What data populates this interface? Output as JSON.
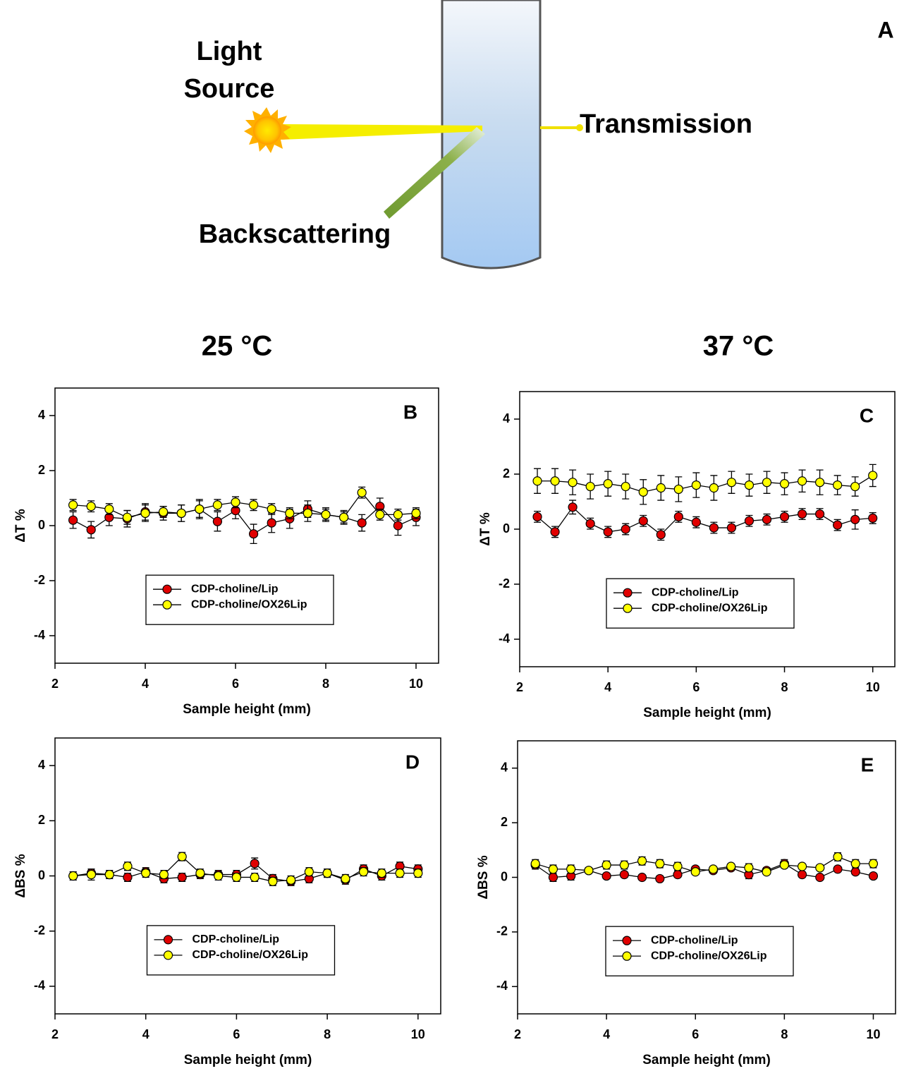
{
  "diagram": {
    "label": "A",
    "light_source_lines": [
      "Light",
      "Source"
    ],
    "transmission": "Transmission",
    "backscattering": "Backscattering"
  },
  "column_titles": [
    "25 °C",
    "37 °C"
  ],
  "chart_data": [
    {
      "type": "line",
      "label": "B",
      "xlabel": "Sample height (mm)",
      "ylabel": "ΔT %",
      "x": [
        2.4,
        2.8,
        3.2,
        3.6,
        4.0,
        4.4,
        4.8,
        5.2,
        5.6,
        6.0,
        6.4,
        6.8,
        7.2,
        7.6,
        8.0,
        8.4,
        8.8,
        9.2,
        9.6,
        10.0
      ],
      "xlim": [
        2,
        10.5
      ],
      "xticks": [
        2,
        4,
        6,
        8,
        10
      ],
      "ylim": [
        -5,
        5
      ],
      "yticks": [
        -4,
        -2,
        0,
        2,
        4
      ],
      "legend": "lower center",
      "series": [
        {
          "name": "CDP-choline/Lip",
          "color": "#e00000",
          "values": [
            0.2,
            -0.15,
            0.3,
            0.25,
            0.5,
            0.45,
            0.45,
            0.6,
            0.15,
            0.55,
            -0.3,
            0.1,
            0.25,
            0.6,
            0.4,
            0.3,
            0.1,
            0.7,
            0.0,
            0.3
          ],
          "errors": [
            0.3,
            0.3,
            0.3,
            0.3,
            0.3,
            0.25,
            0.3,
            0.3,
            0.35,
            0.3,
            0.35,
            0.35,
            0.35,
            0.3,
            0.25,
            0.25,
            0.3,
            0.3,
            0.35,
            0.3
          ]
        },
        {
          "name": "CDP-choline/OX26Lip",
          "color": "#ffff00",
          "values": [
            0.75,
            0.7,
            0.6,
            0.3,
            0.45,
            0.5,
            0.45,
            0.6,
            0.75,
            0.85,
            0.75,
            0.6,
            0.45,
            0.45,
            0.4,
            0.3,
            1.2,
            0.4,
            0.4,
            0.45
          ],
          "errors": [
            0.2,
            0.2,
            0.2,
            0.25,
            0.3,
            0.2,
            0.3,
            0.35,
            0.2,
            0.2,
            0.2,
            0.2,
            0.2,
            0.3,
            0.2,
            0.2,
            0.2,
            0.2,
            0.2,
            0.2
          ]
        }
      ]
    },
    {
      "type": "line",
      "label": "C",
      "xlabel": "Sample height (mm)",
      "ylabel": "ΔT %",
      "x": [
        2.4,
        2.8,
        3.2,
        3.6,
        4.0,
        4.4,
        4.8,
        5.2,
        5.6,
        6.0,
        6.4,
        6.8,
        7.2,
        7.6,
        8.0,
        8.4,
        8.8,
        9.2,
        9.6,
        10.0
      ],
      "xlim": [
        2,
        10.5
      ],
      "xticks": [
        2,
        4,
        6,
        8,
        10
      ],
      "ylim": [
        -5,
        5
      ],
      "yticks": [
        -4,
        -2,
        0,
        2,
        4
      ],
      "legend": "lower center",
      "series": [
        {
          "name": "CDP-choline/Lip",
          "color": "#e00000",
          "values": [
            0.45,
            -0.1,
            0.8,
            0.2,
            -0.1,
            0.0,
            0.3,
            -0.2,
            0.45,
            0.25,
            0.05,
            0.05,
            0.3,
            0.35,
            0.45,
            0.55,
            0.55,
            0.15,
            0.35,
            0.4
          ],
          "errors": [
            0.2,
            0.2,
            0.25,
            0.2,
            0.2,
            0.2,
            0.2,
            0.2,
            0.2,
            0.2,
            0.2,
            0.2,
            0.2,
            0.2,
            0.2,
            0.2,
            0.2,
            0.2,
            0.35,
            0.2
          ]
        },
        {
          "name": "CDP-choline/OX26Lip",
          "color": "#ffff00",
          "values": [
            1.75,
            1.75,
            1.7,
            1.55,
            1.65,
            1.55,
            1.35,
            1.5,
            1.45,
            1.6,
            1.5,
            1.7,
            1.6,
            1.7,
            1.65,
            1.75,
            1.7,
            1.6,
            1.55,
            1.95
          ],
          "errors": [
            0.45,
            0.45,
            0.45,
            0.45,
            0.45,
            0.45,
            0.45,
            0.45,
            0.45,
            0.45,
            0.45,
            0.4,
            0.4,
            0.4,
            0.4,
            0.4,
            0.45,
            0.35,
            0.35,
            0.4
          ]
        }
      ]
    },
    {
      "type": "line",
      "label": "D",
      "xlabel": "Sample height (mm)",
      "ylabel": "ΔBS %",
      "x": [
        2.4,
        2.8,
        3.2,
        3.6,
        4.0,
        4.4,
        4.8,
        5.2,
        5.6,
        6.0,
        6.4,
        6.8,
        7.2,
        7.6,
        8.0,
        8.4,
        8.8,
        9.2,
        9.6,
        10.0
      ],
      "xlim": [
        2,
        10.5
      ],
      "xticks": [
        2,
        4,
        6,
        8,
        10
      ],
      "ylim": [
        -5,
        5
      ],
      "yticks": [
        -4,
        -2,
        0,
        2,
        4
      ],
      "legend": "lower center",
      "series": [
        {
          "name": "CDP-choline/Lip",
          "color": "#e00000",
          "values": [
            0.0,
            0.1,
            0.05,
            -0.05,
            0.15,
            -0.1,
            -0.05,
            0.05,
            0.05,
            0.05,
            0.45,
            -0.1,
            -0.2,
            -0.1,
            0.1,
            -0.15,
            0.25,
            0.0,
            0.35,
            0.25
          ],
          "errors": [
            0.15,
            0.15,
            0.15,
            0.15,
            0.15,
            0.15,
            0.15,
            0.15,
            0.15,
            0.15,
            0.2,
            0.15,
            0.15,
            0.15,
            0.15,
            0.15,
            0.15,
            0.15,
            0.15,
            0.15
          ]
        },
        {
          "name": "CDP-choline/OX26Lip",
          "color": "#ffff00",
          "values": [
            0.0,
            0.05,
            0.05,
            0.35,
            0.1,
            0.05,
            0.7,
            0.1,
            0.0,
            -0.05,
            -0.05,
            -0.2,
            -0.15,
            0.15,
            0.1,
            -0.1,
            0.15,
            0.1,
            0.1,
            0.1
          ],
          "errors": [
            0.15,
            0.2,
            0.15,
            0.15,
            0.15,
            0.15,
            0.15,
            0.15,
            0.15,
            0.15,
            0.15,
            0.15,
            0.15,
            0.15,
            0.15,
            0.15,
            0.15,
            0.15,
            0.15,
            0.15
          ]
        }
      ]
    },
    {
      "type": "line",
      "label": "E",
      "xlabel": "Sample height (mm)",
      "ylabel": "ΔBS %",
      "x": [
        2.4,
        2.8,
        3.2,
        3.6,
        4.0,
        4.4,
        4.8,
        5.2,
        5.6,
        6.0,
        6.4,
        6.8,
        7.2,
        7.6,
        8.0,
        8.4,
        8.8,
        9.2,
        9.6,
        10.0
      ],
      "xlim": [
        2,
        10.5
      ],
      "xticks": [
        2,
        4,
        6,
        8,
        10
      ],
      "ylim": [
        -5,
        5
      ],
      "yticks": [
        -4,
        -2,
        0,
        2,
        4
      ],
      "legend": "lower center",
      "series": [
        {
          "name": "CDP-choline/Lip",
          "color": "#e00000",
          "values": [
            0.45,
            0.0,
            0.05,
            0.25,
            0.05,
            0.1,
            0.0,
            -0.05,
            0.1,
            0.3,
            0.25,
            0.35,
            0.1,
            0.25,
            0.5,
            0.1,
            0.0,
            0.3,
            0.2,
            0.05
          ],
          "errors": [
            0.15,
            0.15,
            0.15,
            0.1,
            0.1,
            0.1,
            0.1,
            0.1,
            0.1,
            0.1,
            0.1,
            0.1,
            0.15,
            0.1,
            0.15,
            0.1,
            0.1,
            0.1,
            0.1,
            0.1
          ]
        },
        {
          "name": "CDP-choline/OX26Lip",
          "color": "#ffff00",
          "values": [
            0.5,
            0.3,
            0.3,
            0.25,
            0.45,
            0.45,
            0.6,
            0.5,
            0.4,
            0.2,
            0.3,
            0.4,
            0.35,
            0.2,
            0.45,
            0.4,
            0.35,
            0.75,
            0.5,
            0.5
          ],
          "errors": [
            0.15,
            0.15,
            0.15,
            0.1,
            0.15,
            0.15,
            0.15,
            0.15,
            0.15,
            0.1,
            0.1,
            0.1,
            0.15,
            0.1,
            0.1,
            0.1,
            0.1,
            0.15,
            0.15,
            0.15
          ]
        }
      ]
    }
  ]
}
